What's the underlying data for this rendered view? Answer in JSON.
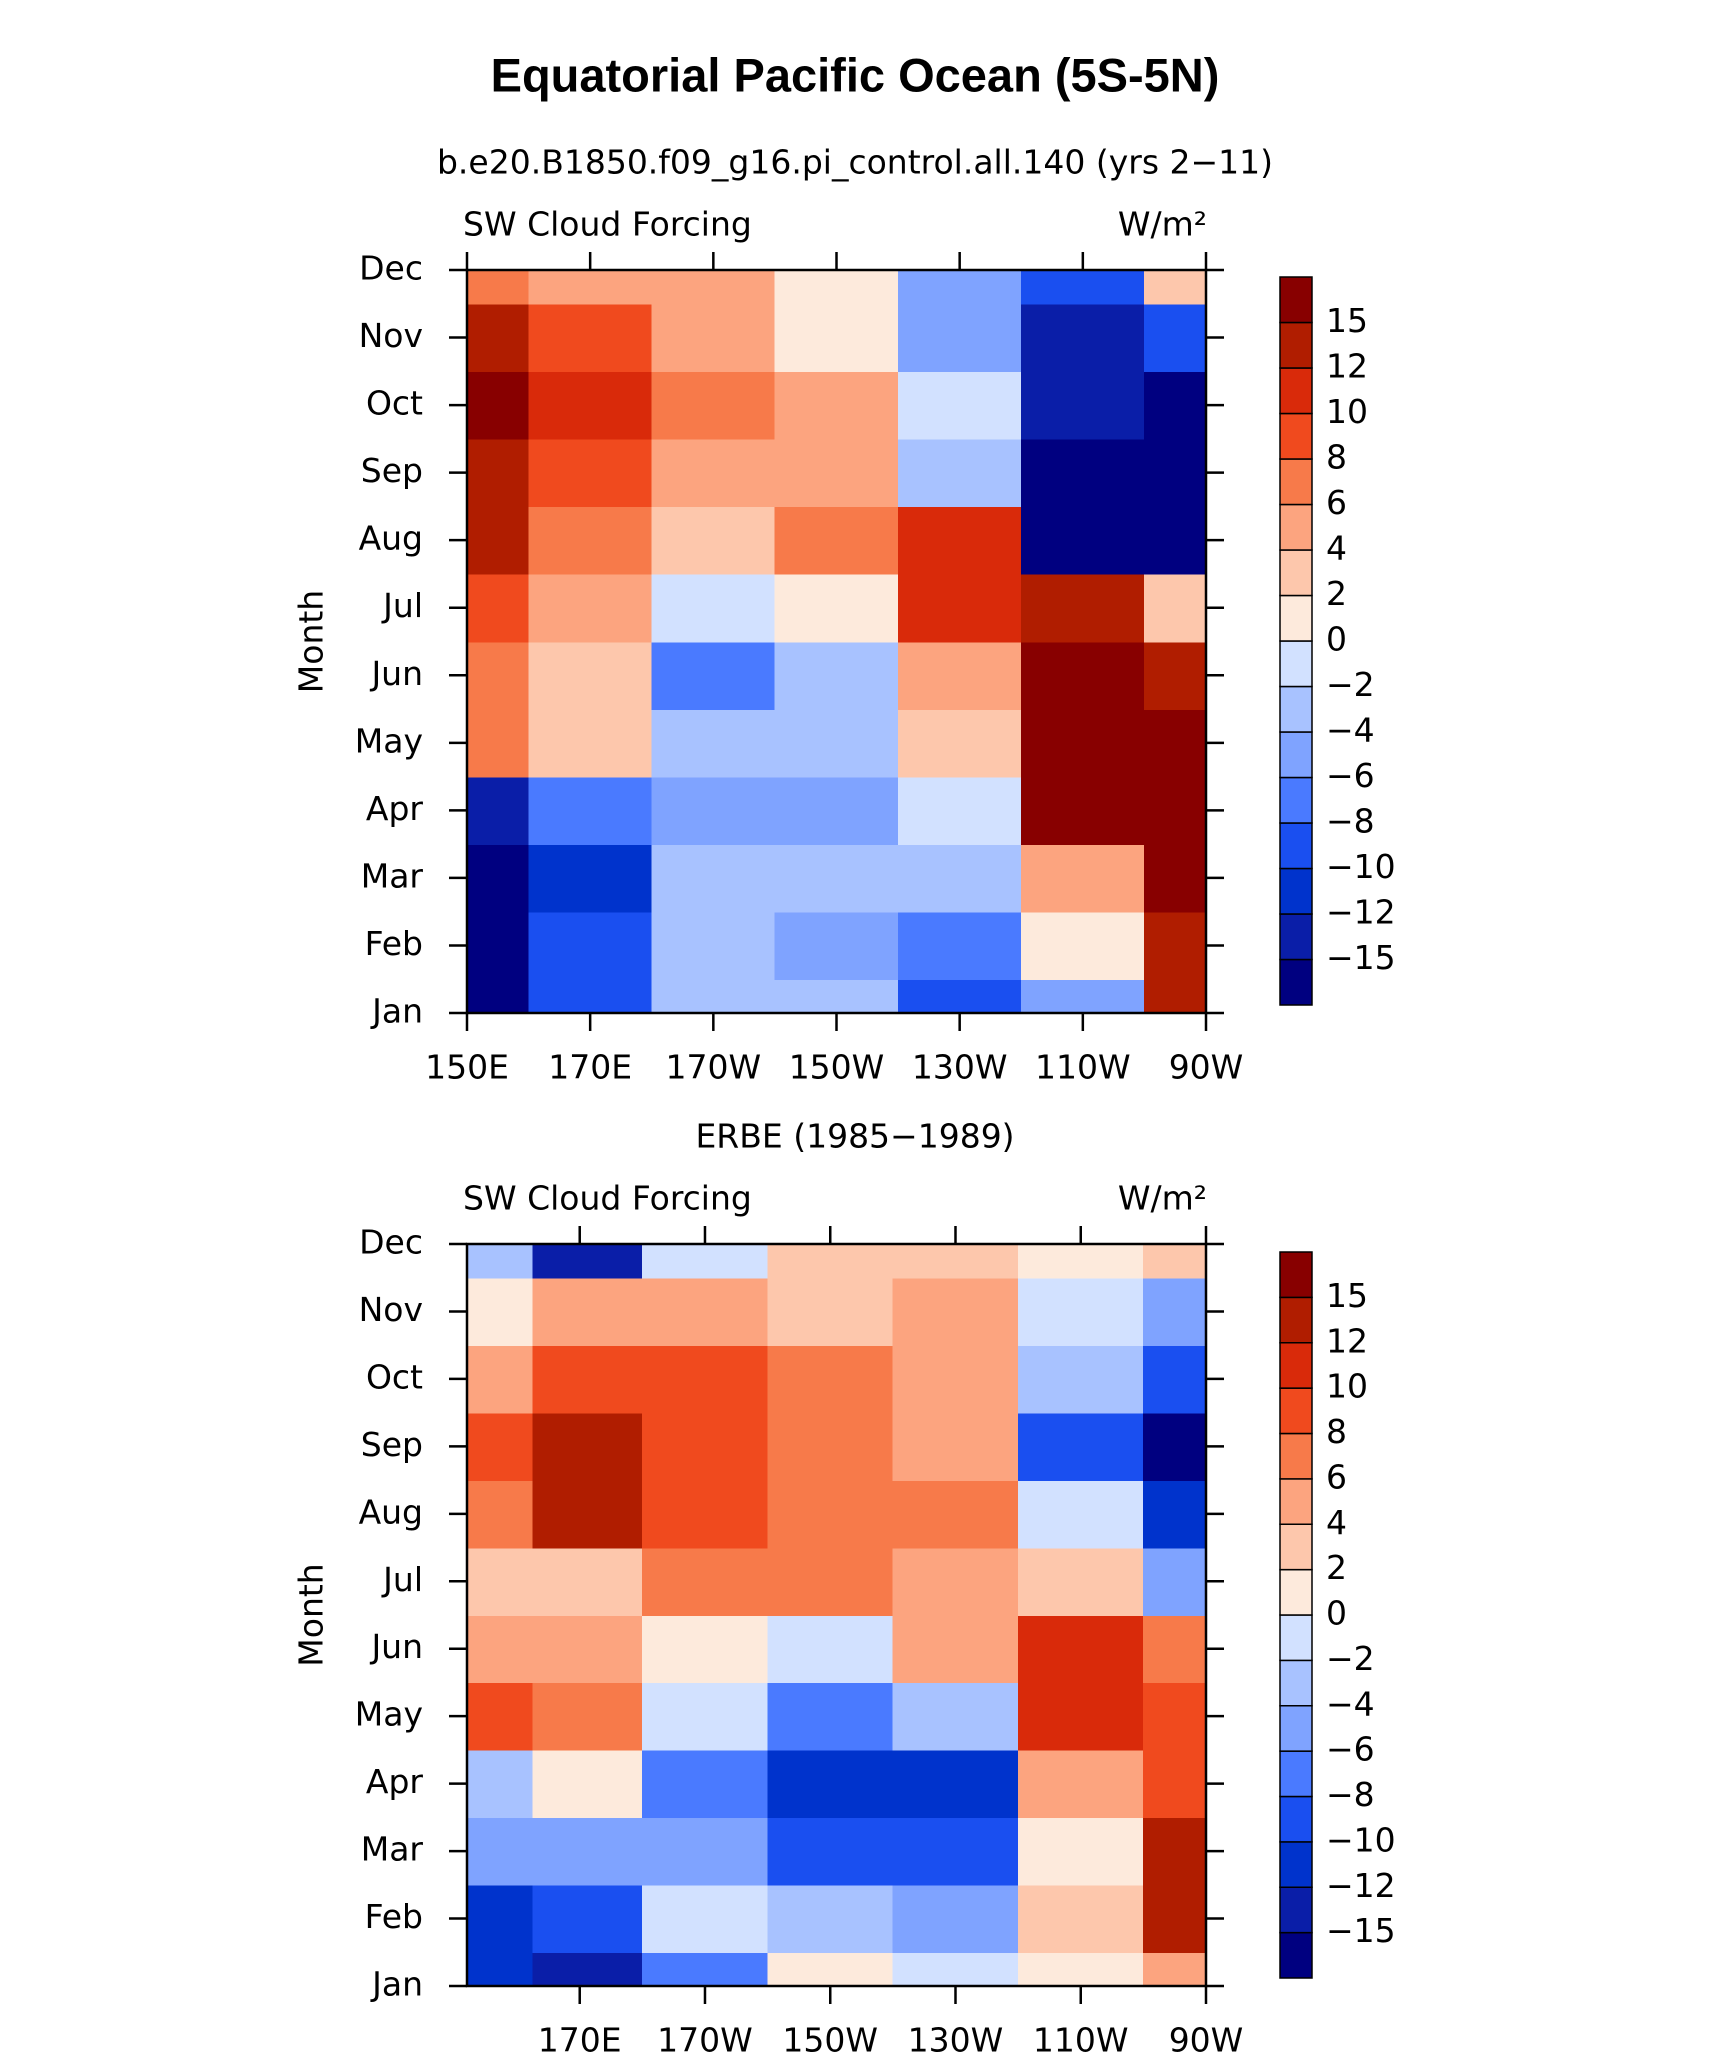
{
  "title": "Equatorial Pacific Ocean (5S-5N)",
  "chart_data": [
    {
      "type": "contour",
      "subtitle": "b.e20.B1850.f09_g16.pi_control.all.140 (yrs 2−11)",
      "left_label": "SW Cloud Forcing",
      "right_label": "W/m²",
      "y_label": "Month",
      "categories": [
        "Jan",
        "Feb",
        "Mar",
        "Apr",
        "May",
        "Jun",
        "Jul",
        "Aug",
        "Sep",
        "Oct",
        "Nov",
        "Dec"
      ],
      "x": [
        150,
        170,
        190,
        210,
        230,
        250,
        270
      ],
      "xlim": [
        150,
        270
      ],
      "xticks": [
        {
          "value": 150,
          "label": "150E"
        },
        {
          "value": 170,
          "label": "170E"
        },
        {
          "value": 190,
          "label": "170W"
        },
        {
          "value": 210,
          "label": "150W"
        },
        {
          "value": 230,
          "label": "130W"
        },
        {
          "value": 250,
          "label": "110W"
        },
        {
          "value": 270,
          "label": "90W"
        }
      ],
      "values": [
        [
          -16,
          -9,
          -3,
          -3,
          -9,
          -6,
          14
        ],
        [
          -16,
          -10,
          -4,
          -5,
          -8,
          0,
          13
        ],
        [
          -16,
          -11,
          -3,
          -4,
          -4,
          5,
          16
        ],
        [
          -13,
          -7,
          -6,
          -5,
          -1,
          16,
          16
        ],
        [
          7,
          3,
          -4,
          -4,
          2,
          16,
          16
        ],
        [
          6,
          3,
          -7,
          -3,
          5,
          16,
          14
        ],
        [
          8,
          4,
          -2,
          0,
          11,
          13,
          3
        ],
        [
          12,
          6,
          2,
          6,
          11,
          -16,
          -16
        ],
        [
          14,
          8,
          5,
          5,
          -4,
          -16,
          -16
        ],
        [
          16,
          10,
          7,
          5,
          -2,
          -14,
          -16
        ],
        [
          13,
          8,
          4,
          0,
          -6,
          -13,
          -10
        ],
        [
          7,
          4,
          4,
          0,
          -5,
          -10,
          2
        ]
      ],
      "levels": [
        {
          "value": -15,
          "label": "−15"
        },
        {
          "value": -12,
          "label": "−12"
        },
        {
          "value": -10,
          "label": "−10"
        },
        {
          "value": -8,
          "label": "−8"
        },
        {
          "value": -6,
          "label": "−6"
        },
        {
          "value": -4,
          "label": "−4"
        },
        {
          "value": -2,
          "label": "−2"
        },
        0,
        2,
        4,
        6,
        8,
        10,
        12,
        15
      ],
      "colors": [
        "#000080",
        "#0a1ea8",
        "#0033cc",
        "#1a4ff0",
        "#4a7aff",
        "#7fa3ff",
        "#a8c2ff",
        "#d2e1ff",
        "#fdeadc",
        "#fdc7ac",
        "#fca47f",
        "#f77a4a",
        "#f04a1e",
        "#d92a0a",
        "#b01d00",
        "#880000"
      ]
    },
    {
      "type": "contour",
      "subtitle": "ERBE (1985−1989)",
      "left_label": "SW Cloud Forcing",
      "right_label": "W/m²",
      "y_label": "Month",
      "categories": [
        "Jan",
        "Feb",
        "Mar",
        "Apr",
        "May",
        "Jun",
        "Jul",
        "Aug",
        "Sep",
        "Oct",
        "Nov",
        "Dec"
      ],
      "x": [
        155,
        170,
        190,
        210,
        230,
        250,
        270
      ],
      "xlim": [
        152,
        270
      ],
      "xticks": [
        {
          "value": 170,
          "label": "170E"
        },
        {
          "value": 190,
          "label": "170W"
        },
        {
          "value": 210,
          "label": "150W"
        },
        {
          "value": 230,
          "label": "130W"
        },
        {
          "value": 250,
          "label": "110W"
        },
        {
          "value": 270,
          "label": "90W"
        }
      ],
      "values": [
        [
          -12,
          -13,
          -8,
          0,
          -2,
          0,
          4
        ],
        [
          -11,
          -9,
          -2,
          -4,
          -6,
          2,
          12
        ],
        [
          -5,
          -6,
          -6,
          -10,
          -10,
          0,
          14
        ],
        [
          -3,
          0,
          -8,
          -12,
          -12,
          4,
          8
        ],
        [
          9,
          6,
          -1,
          -8,
          -4,
          10,
          8
        ],
        [
          4,
          4,
          0,
          -2,
          4,
          11,
          6
        ],
        [
          3,
          3,
          6,
          6,
          5,
          2,
          -6
        ],
        [
          6,
          13,
          9,
          7,
          6,
          -2,
          -12
        ],
        [
          9,
          12,
          9,
          7,
          5,
          -10,
          -16
        ],
        [
          4,
          8,
          8,
          6,
          4,
          -4,
          -10
        ],
        [
          0,
          5,
          4,
          3,
          4,
          -2,
          -6
        ],
        [
          -4,
          -13,
          -2,
          2,
          2,
          0,
          3
        ]
      ],
      "levels": [
        {
          "value": -15,
          "label": "−15"
        },
        {
          "value": -12,
          "label": "−12"
        },
        {
          "value": -10,
          "label": "−10"
        },
        {
          "value": -8,
          "label": "−8"
        },
        {
          "value": -6,
          "label": "−6"
        },
        {
          "value": -4,
          "label": "−4"
        },
        {
          "value": -2,
          "label": "−2"
        },
        0,
        2,
        4,
        6,
        8,
        10,
        12,
        15
      ],
      "colors": [
        "#000080",
        "#0a1ea8",
        "#0033cc",
        "#1a4ff0",
        "#4a7aff",
        "#7fa3ff",
        "#a8c2ff",
        "#d2e1ff",
        "#fdeadc",
        "#fdc7ac",
        "#fca47f",
        "#f77a4a",
        "#f04a1e",
        "#d92a0a",
        "#b01d00",
        "#880000"
      ]
    }
  ]
}
